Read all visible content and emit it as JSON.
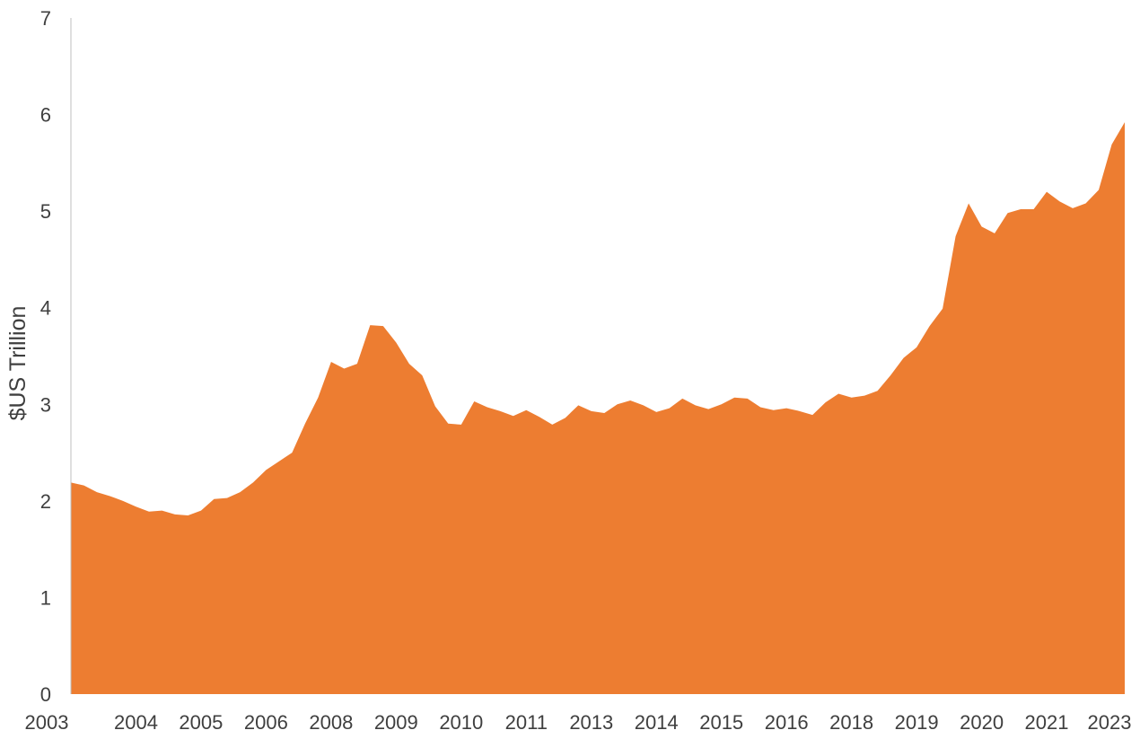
{
  "colors": {
    "area": "#ED7D31",
    "axis": "#bfbfbf",
    "text": "#3f3f3f",
    "background": "#ffffff"
  },
  "chart_data": {
    "type": "area",
    "title": "",
    "xlabel": "",
    "ylabel": "$US Trillion",
    "ylim": [
      0,
      7
    ],
    "yticks": [
      0,
      1,
      2,
      3,
      4,
      5,
      6,
      7
    ],
    "grid": false,
    "legend": "none",
    "x_tick_labels": [
      "2003",
      "2004",
      "2005",
      "2006",
      "2008",
      "2009",
      "2010",
      "2011",
      "2013",
      "2014",
      "2015",
      "2016",
      "2018",
      "2019",
      "2020",
      "2021",
      "2023"
    ],
    "x_tick_index": [
      0,
      5,
      10,
      15,
      20,
      25,
      30,
      35,
      40,
      45,
      50,
      55,
      60,
      65,
      70,
      75,
      80
    ],
    "series": [
      {
        "values": [
          2.19,
          2.16,
          2.09,
          2.05,
          2.0,
          1.94,
          1.89,
          1.9,
          1.86,
          1.85,
          1.9,
          2.02,
          2.03,
          2.09,
          2.19,
          2.32,
          2.41,
          2.5,
          2.8,
          3.07,
          3.44,
          3.37,
          3.42,
          3.82,
          3.81,
          3.64,
          3.42,
          3.3,
          2.98,
          2.8,
          2.79,
          3.03,
          2.97,
          2.93,
          2.88,
          2.94,
          2.87,
          2.79,
          2.86,
          2.99,
          2.93,
          2.91,
          3.0,
          3.04,
          2.99,
          2.92,
          2.96,
          3.06,
          2.99,
          2.95,
          3.0,
          3.07,
          3.06,
          2.97,
          2.94,
          2.96,
          2.93,
          2.89,
          3.02,
          3.11,
          3.07,
          3.09,
          3.14,
          3.3,
          3.48,
          3.59,
          3.81,
          3.99,
          4.74,
          5.08,
          4.84,
          4.77,
          4.98,
          5.02,
          5.02,
          5.2,
          5.1,
          5.03,
          5.08,
          5.22,
          5.69,
          5.92
        ]
      }
    ]
  }
}
